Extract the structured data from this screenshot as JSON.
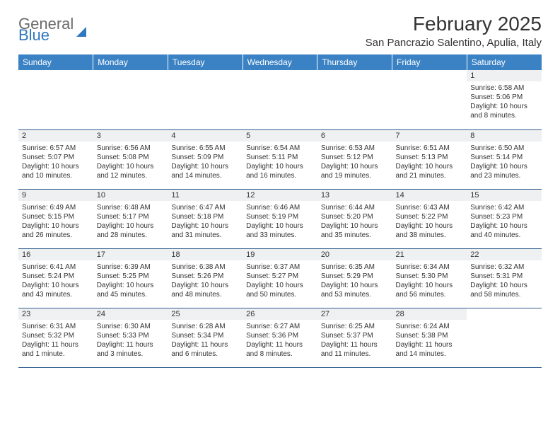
{
  "logo": {
    "text_gray": "General",
    "text_blue": "Blue"
  },
  "title": "February 2025",
  "location": "San Pancrazio Salentino, Apulia, Italy",
  "colors": {
    "header_bg": "#3a82c4",
    "header_text": "#ffffff",
    "daynum_bg": "#eef0f2",
    "border": "#2f5e8e",
    "logo_gray": "#6b6b6b",
    "logo_blue": "#2e78bf",
    "body_text": "#333333"
  },
  "weekdays": [
    "Sunday",
    "Monday",
    "Tuesday",
    "Wednesday",
    "Thursday",
    "Friday",
    "Saturday"
  ],
  "weeks": [
    [
      null,
      null,
      null,
      null,
      null,
      null,
      {
        "d": "1",
        "sr": "Sunrise: 6:58 AM",
        "ss": "Sunset: 5:06 PM",
        "dl1": "Daylight: 10 hours",
        "dl2": "and 8 minutes."
      }
    ],
    [
      {
        "d": "2",
        "sr": "Sunrise: 6:57 AM",
        "ss": "Sunset: 5:07 PM",
        "dl1": "Daylight: 10 hours",
        "dl2": "and 10 minutes."
      },
      {
        "d": "3",
        "sr": "Sunrise: 6:56 AM",
        "ss": "Sunset: 5:08 PM",
        "dl1": "Daylight: 10 hours",
        "dl2": "and 12 minutes."
      },
      {
        "d": "4",
        "sr": "Sunrise: 6:55 AM",
        "ss": "Sunset: 5:09 PM",
        "dl1": "Daylight: 10 hours",
        "dl2": "and 14 minutes."
      },
      {
        "d": "5",
        "sr": "Sunrise: 6:54 AM",
        "ss": "Sunset: 5:11 PM",
        "dl1": "Daylight: 10 hours",
        "dl2": "and 16 minutes."
      },
      {
        "d": "6",
        "sr": "Sunrise: 6:53 AM",
        "ss": "Sunset: 5:12 PM",
        "dl1": "Daylight: 10 hours",
        "dl2": "and 19 minutes."
      },
      {
        "d": "7",
        "sr": "Sunrise: 6:51 AM",
        "ss": "Sunset: 5:13 PM",
        "dl1": "Daylight: 10 hours",
        "dl2": "and 21 minutes."
      },
      {
        "d": "8",
        "sr": "Sunrise: 6:50 AM",
        "ss": "Sunset: 5:14 PM",
        "dl1": "Daylight: 10 hours",
        "dl2": "and 23 minutes."
      }
    ],
    [
      {
        "d": "9",
        "sr": "Sunrise: 6:49 AM",
        "ss": "Sunset: 5:15 PM",
        "dl1": "Daylight: 10 hours",
        "dl2": "and 26 minutes."
      },
      {
        "d": "10",
        "sr": "Sunrise: 6:48 AM",
        "ss": "Sunset: 5:17 PM",
        "dl1": "Daylight: 10 hours",
        "dl2": "and 28 minutes."
      },
      {
        "d": "11",
        "sr": "Sunrise: 6:47 AM",
        "ss": "Sunset: 5:18 PM",
        "dl1": "Daylight: 10 hours",
        "dl2": "and 31 minutes."
      },
      {
        "d": "12",
        "sr": "Sunrise: 6:46 AM",
        "ss": "Sunset: 5:19 PM",
        "dl1": "Daylight: 10 hours",
        "dl2": "and 33 minutes."
      },
      {
        "d": "13",
        "sr": "Sunrise: 6:44 AM",
        "ss": "Sunset: 5:20 PM",
        "dl1": "Daylight: 10 hours",
        "dl2": "and 35 minutes."
      },
      {
        "d": "14",
        "sr": "Sunrise: 6:43 AM",
        "ss": "Sunset: 5:22 PM",
        "dl1": "Daylight: 10 hours",
        "dl2": "and 38 minutes."
      },
      {
        "d": "15",
        "sr": "Sunrise: 6:42 AM",
        "ss": "Sunset: 5:23 PM",
        "dl1": "Daylight: 10 hours",
        "dl2": "and 40 minutes."
      }
    ],
    [
      {
        "d": "16",
        "sr": "Sunrise: 6:41 AM",
        "ss": "Sunset: 5:24 PM",
        "dl1": "Daylight: 10 hours",
        "dl2": "and 43 minutes."
      },
      {
        "d": "17",
        "sr": "Sunrise: 6:39 AM",
        "ss": "Sunset: 5:25 PM",
        "dl1": "Daylight: 10 hours",
        "dl2": "and 45 minutes."
      },
      {
        "d": "18",
        "sr": "Sunrise: 6:38 AM",
        "ss": "Sunset: 5:26 PM",
        "dl1": "Daylight: 10 hours",
        "dl2": "and 48 minutes."
      },
      {
        "d": "19",
        "sr": "Sunrise: 6:37 AM",
        "ss": "Sunset: 5:27 PM",
        "dl1": "Daylight: 10 hours",
        "dl2": "and 50 minutes."
      },
      {
        "d": "20",
        "sr": "Sunrise: 6:35 AM",
        "ss": "Sunset: 5:29 PM",
        "dl1": "Daylight: 10 hours",
        "dl2": "and 53 minutes."
      },
      {
        "d": "21",
        "sr": "Sunrise: 6:34 AM",
        "ss": "Sunset: 5:30 PM",
        "dl1": "Daylight: 10 hours",
        "dl2": "and 56 minutes."
      },
      {
        "d": "22",
        "sr": "Sunrise: 6:32 AM",
        "ss": "Sunset: 5:31 PM",
        "dl1": "Daylight: 10 hours",
        "dl2": "and 58 minutes."
      }
    ],
    [
      {
        "d": "23",
        "sr": "Sunrise: 6:31 AM",
        "ss": "Sunset: 5:32 PM",
        "dl1": "Daylight: 11 hours",
        "dl2": "and 1 minute."
      },
      {
        "d": "24",
        "sr": "Sunrise: 6:30 AM",
        "ss": "Sunset: 5:33 PM",
        "dl1": "Daylight: 11 hours",
        "dl2": "and 3 minutes."
      },
      {
        "d": "25",
        "sr": "Sunrise: 6:28 AM",
        "ss": "Sunset: 5:34 PM",
        "dl1": "Daylight: 11 hours",
        "dl2": "and 6 minutes."
      },
      {
        "d": "26",
        "sr": "Sunrise: 6:27 AM",
        "ss": "Sunset: 5:36 PM",
        "dl1": "Daylight: 11 hours",
        "dl2": "and 8 minutes."
      },
      {
        "d": "27",
        "sr": "Sunrise: 6:25 AM",
        "ss": "Sunset: 5:37 PM",
        "dl1": "Daylight: 11 hours",
        "dl2": "and 11 minutes."
      },
      {
        "d": "28",
        "sr": "Sunrise: 6:24 AM",
        "ss": "Sunset: 5:38 PM",
        "dl1": "Daylight: 11 hours",
        "dl2": "and 14 minutes."
      },
      null
    ]
  ]
}
